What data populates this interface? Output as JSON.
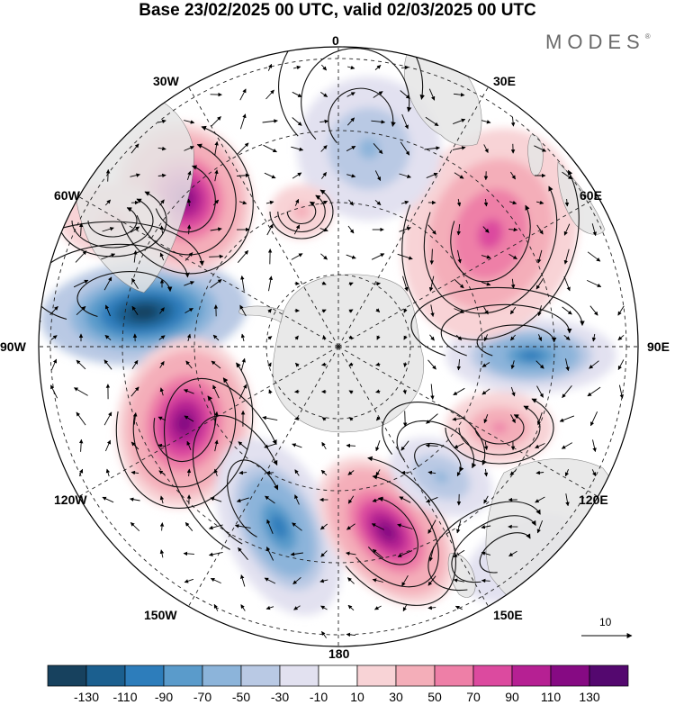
{
  "title": "Base 23/02/2025 00 UTC, valid 02/03/2025 00 UTC",
  "brand": "MODES",
  "brand_mark": "®",
  "longitude_labels": [
    "0",
    "30E",
    "60E",
    "90E",
    "120E",
    "150E",
    "180",
    "150W",
    "120W",
    "90W",
    "60W",
    "30W"
  ],
  "reference_vector": {
    "value": "10"
  },
  "colorbar": {
    "ticks": [
      "-130",
      "-110",
      "-90",
      "-70",
      "-50",
      "-30",
      "-10",
      "10",
      "30",
      "50",
      "70",
      "90",
      "110",
      "130"
    ],
    "colors": [
      "#17415e",
      "#1b5f8f",
      "#2d7dbb",
      "#5a9bcb",
      "#8cb4da",
      "#b9c9e4",
      "#dedde f0",
      "#ffffff",
      "#f8d3d6",
      "#f4aeb9",
      "#ee7fa7",
      "#dc4a9f",
      "#b62093",
      "#860a83",
      "#54086f"
    ]
  },
  "anomalies": [
    {
      "sign": "negative",
      "level": -130,
      "region": "90W"
    },
    {
      "sign": "positive",
      "level": 110,
      "region": "45W"
    },
    {
      "sign": "positive",
      "level": 110,
      "region": "105W"
    },
    {
      "sign": "negative",
      "level": -90,
      "region": "140W"
    },
    {
      "sign": "positive",
      "level": 110,
      "region": "170E"
    },
    {
      "sign": "negative",
      "level": -50,
      "region": "130E"
    },
    {
      "sign": "positive",
      "level": 50,
      "region": "110E"
    },
    {
      "sign": "negative",
      "level": -90,
      "region": "90E"
    },
    {
      "sign": "positive",
      "level": 50,
      "region": "45E"
    },
    {
      "sign": "negative",
      "level": -50,
      "region": "10E"
    },
    {
      "sign": "positive",
      "level": 30,
      "region": "60W"
    }
  ]
}
